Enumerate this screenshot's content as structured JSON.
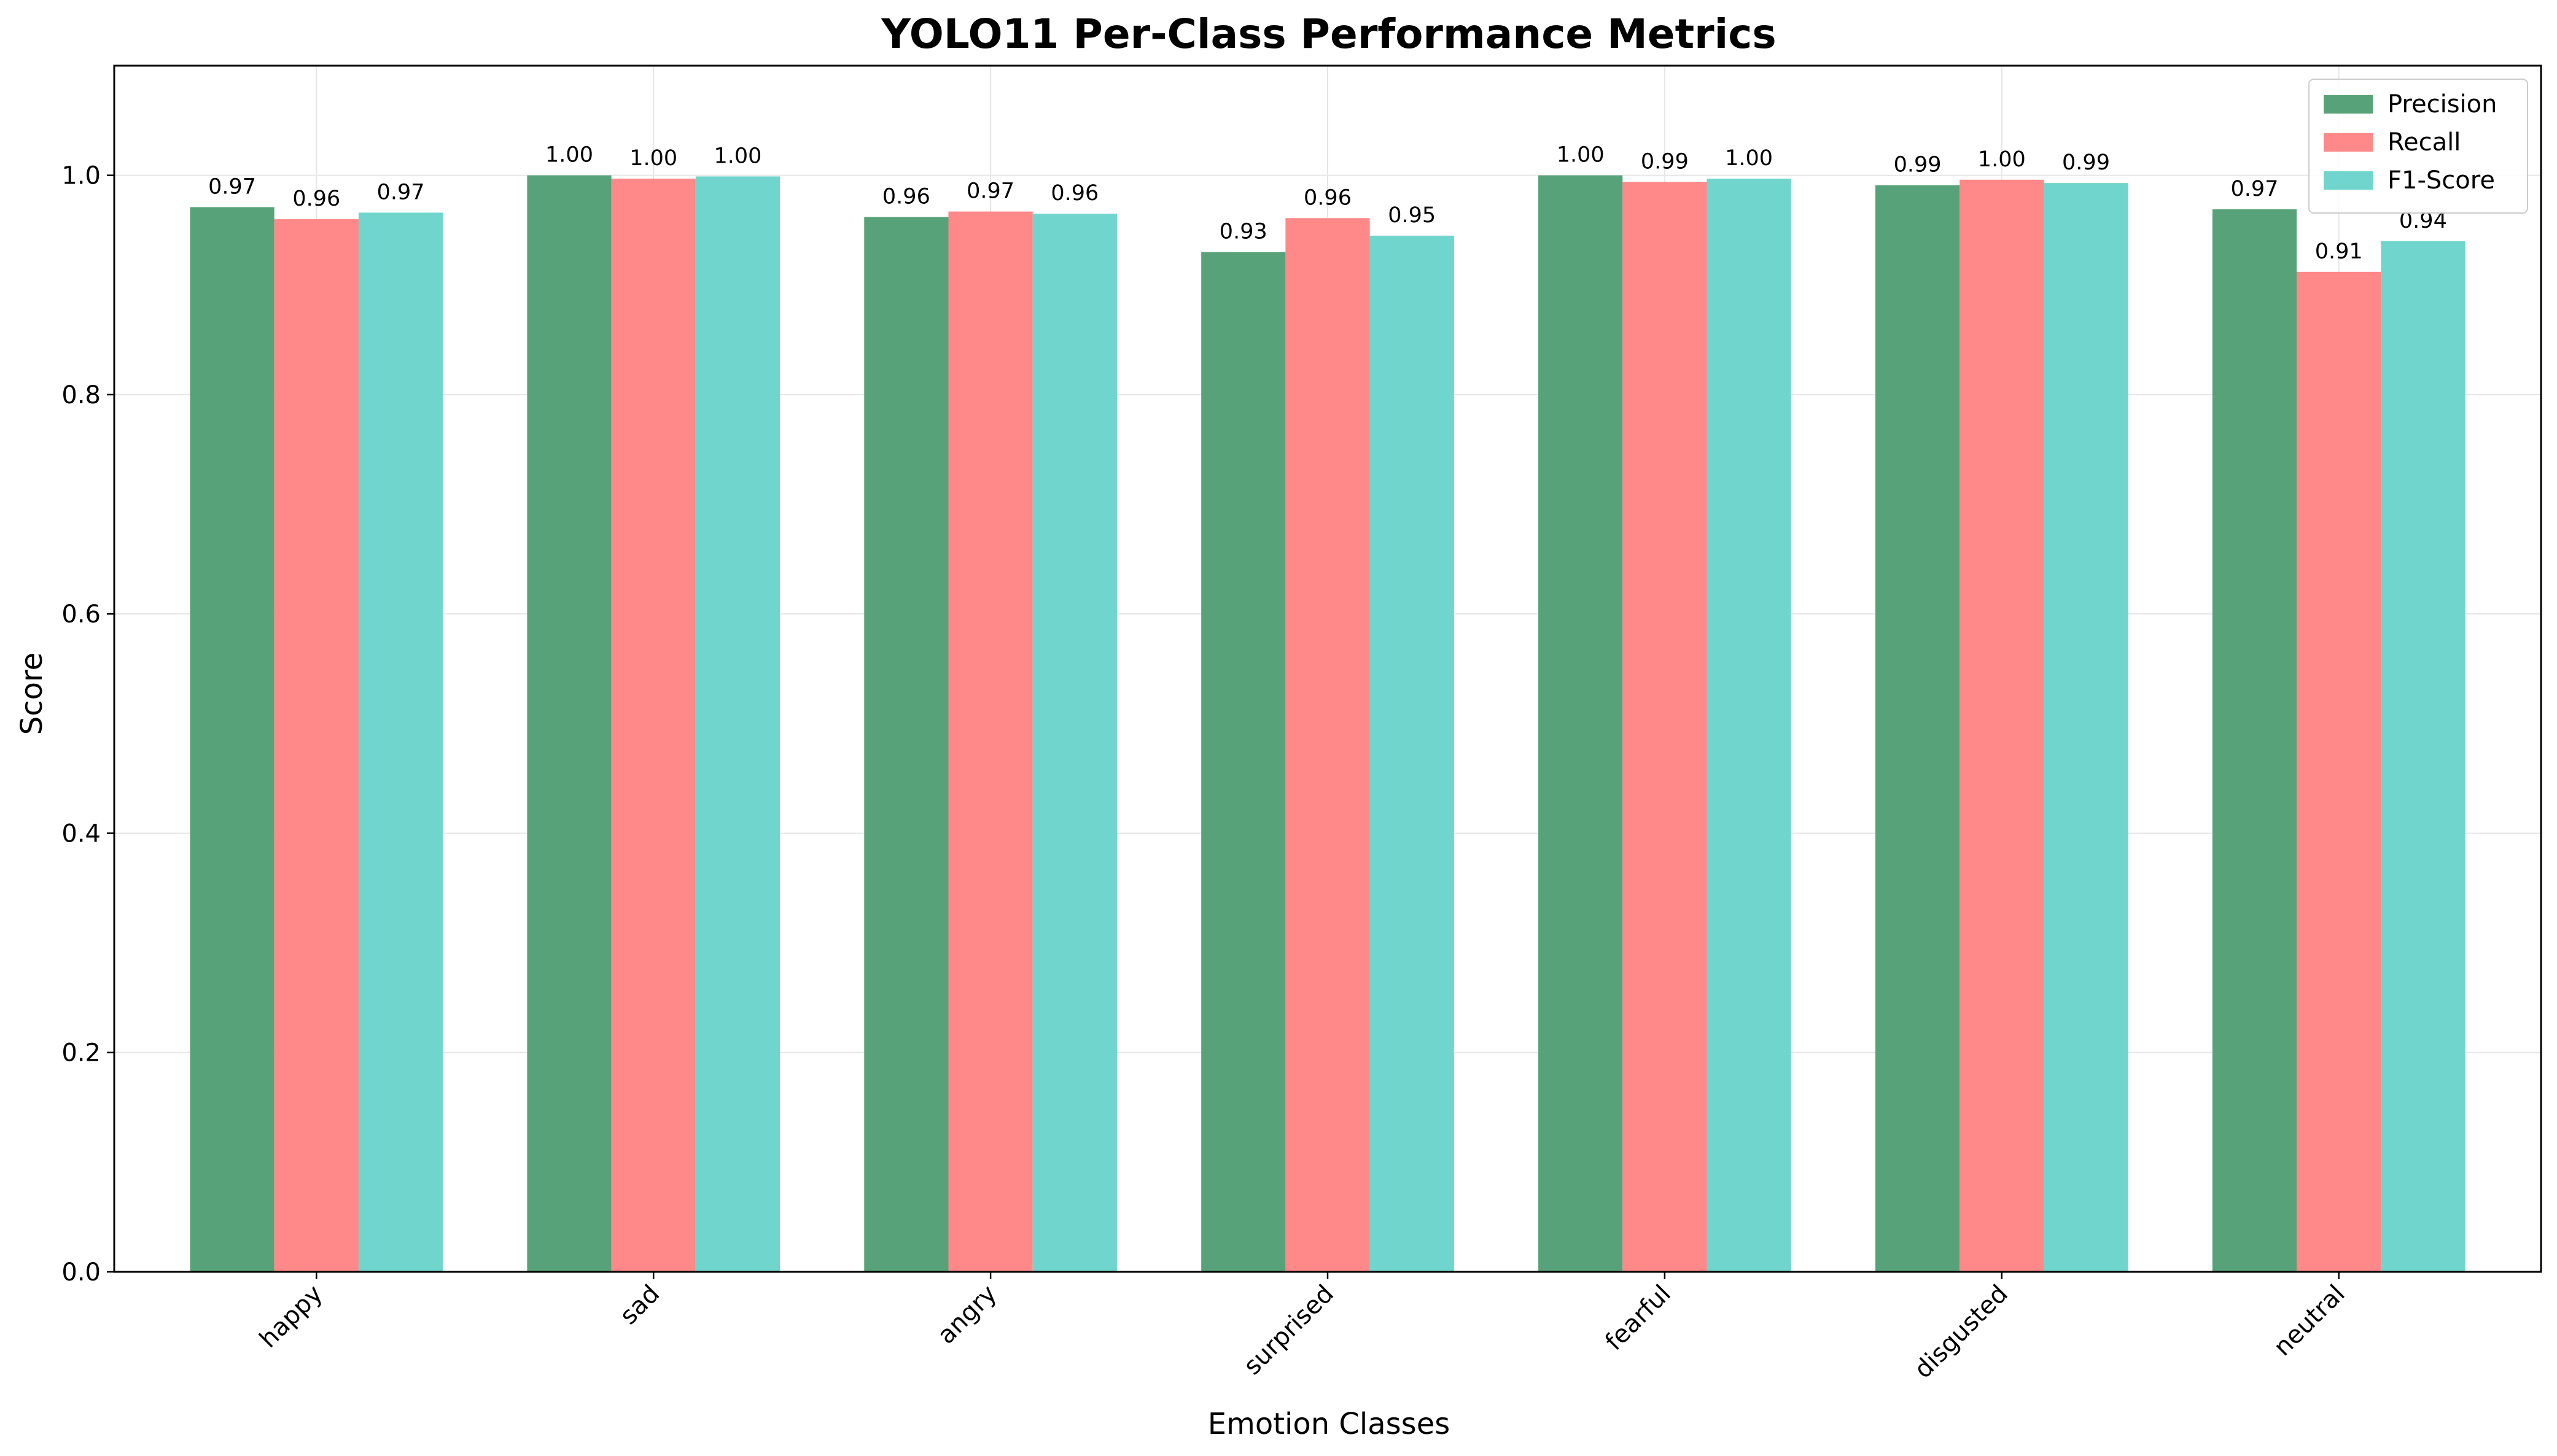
{
  "chart_data": {
    "type": "bar",
    "title": "YOLO11 Per-Class Performance Metrics",
    "xlabel": "Emotion Classes",
    "ylabel": "Score",
    "ylim": [
      0,
      1.1
    ],
    "yticks": [
      0.0,
      0.2,
      0.4,
      0.6,
      0.8,
      1.0
    ],
    "ytick_labels": [
      "0.0",
      "0.2",
      "0.4",
      "0.6",
      "0.8",
      "1.0"
    ],
    "grid": true,
    "legend_position": "top-right",
    "categories": [
      "happy",
      "sad",
      "angry",
      "surprised",
      "fearful",
      "disgusted",
      "neutral"
    ],
    "series": [
      {
        "name": "Precision",
        "color": "#58a279",
        "values": [
          0.971,
          1.0,
          0.962,
          0.93,
          1.0,
          0.991,
          0.969
        ],
        "labels": [
          "0.97",
          "1.00",
          "0.96",
          "0.93",
          "1.00",
          "0.99",
          "0.97"
        ]
      },
      {
        "name": "Recall",
        "color": "#ff8888",
        "values": [
          0.96,
          0.997,
          0.967,
          0.961,
          0.994,
          0.996,
          0.912
        ],
        "labels": [
          "0.96",
          "1.00",
          "0.97",
          "0.96",
          "0.99",
          "1.00",
          "0.91"
        ]
      },
      {
        "name": "F1-Score",
        "color": "#70d6cd",
        "values": [
          0.966,
          0.999,
          0.965,
          0.945,
          0.997,
          0.993,
          0.94
        ],
        "labels": [
          "0.97",
          "1.00",
          "0.96",
          "0.95",
          "1.00",
          "0.99",
          "0.94"
        ]
      }
    ]
  }
}
